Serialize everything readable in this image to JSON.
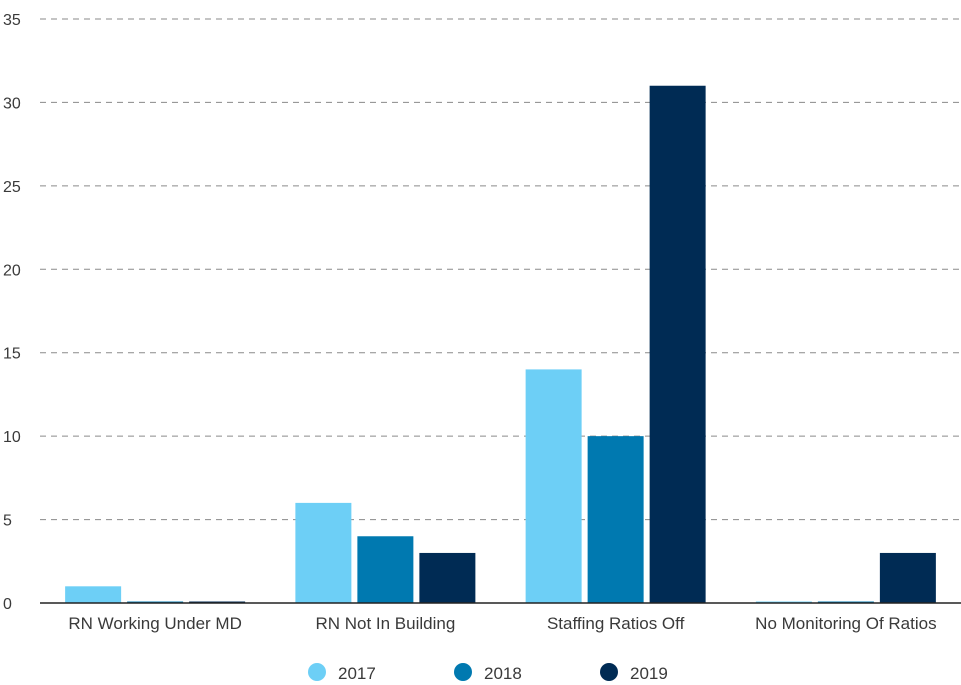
{
  "chart_data": {
    "type": "bar",
    "categories": [
      "RN Working Under MD",
      "RN Not In Building",
      "Staffing Ratios Off",
      "No Monitoring Of Ratios"
    ],
    "series": [
      {
        "name": "2017",
        "values": [
          1,
          6,
          14,
          0
        ],
        "color": "#6dcff6"
      },
      {
        "name": "2018",
        "values": [
          0,
          4,
          10,
          0
        ],
        "color": "#0079b0"
      },
      {
        "name": "2019",
        "values": [
          0,
          3,
          31,
          3
        ],
        "color": "#002b54"
      }
    ],
    "ylim": [
      0,
      35
    ],
    "yticks": [
      0,
      5,
      10,
      15,
      20,
      25,
      30,
      35
    ],
    "grid": true,
    "grid_style": "dashed",
    "legend_position": "bottom",
    "title": "",
    "xlabel": "",
    "ylabel": ""
  }
}
